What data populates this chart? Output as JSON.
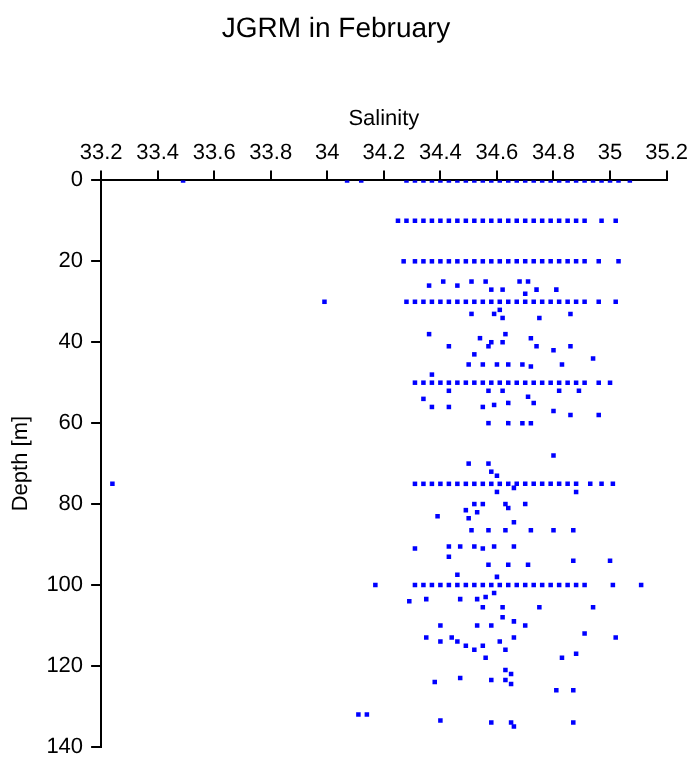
{
  "chart_data": {
    "type": "scatter",
    "title": "JGRM in February",
    "xlabel": "Salinity",
    "ylabel": "Depth [m]",
    "xlim": [
      33.2,
      35.2
    ],
    "xticks": [
      33.2,
      33.4,
      33.6,
      33.8,
      34,
      34.2,
      34.4,
      34.6,
      34.8,
      35,
      35.2
    ],
    "ylim": [
      140,
      0
    ],
    "yticks": [
      0,
      20,
      40,
      60,
      80,
      100,
      120,
      140
    ],
    "grid": false,
    "legend": false,
    "marker": "square",
    "series": [
      {
        "color": "#0000ff",
        "x": [
          33.49,
          34.07,
          34.12,
          34.28,
          34.31,
          34.34,
          34.37,
          34.4,
          34.43,
          34.46,
          34.49,
          34.52,
          34.55,
          34.58,
          34.61,
          34.64,
          34.67,
          34.7,
          34.73,
          34.76,
          34.79,
          34.82,
          34.85,
          34.88,
          34.91,
          34.94,
          34.97,
          35.0,
          35.03,
          35.07
        ],
        "values": [
          0,
          0,
          0,
          0,
          0,
          0,
          0,
          0,
          0,
          0,
          0,
          0,
          0,
          0,
          0,
          0,
          0,
          0,
          0,
          0,
          0,
          0,
          0,
          0,
          0,
          0,
          0,
          0,
          0,
          0
        ]
      },
      {
        "color": "#0000ff",
        "x": [
          34.25,
          34.28,
          34.31,
          34.34,
          34.37,
          34.4,
          34.43,
          34.46,
          34.49,
          34.52,
          34.55,
          34.58,
          34.61,
          34.64,
          34.67,
          34.7,
          34.73,
          34.76,
          34.79,
          34.82,
          34.85,
          34.88,
          34.91,
          34.97,
          35.02
        ],
        "values": [
          10,
          10,
          10,
          10,
          10,
          10,
          10,
          10,
          10,
          10,
          10,
          10,
          10,
          10,
          10,
          10,
          10,
          10,
          10,
          10,
          10,
          10,
          10,
          10,
          10
        ]
      },
      {
        "color": "#0000ff",
        "x": [
          34.27,
          34.31,
          34.34,
          34.37,
          34.4,
          34.43,
          34.46,
          34.49,
          34.52,
          34.55,
          34.58,
          34.61,
          34.64,
          34.67,
          34.7,
          34.73,
          34.76,
          34.79,
          34.82,
          34.85,
          34.88,
          34.91,
          34.96,
          35.03
        ],
        "values": [
          20,
          20,
          20,
          20,
          20,
          20,
          20,
          20,
          20,
          20,
          20,
          20,
          20,
          20,
          20,
          20,
          20,
          20,
          20,
          20,
          20,
          20,
          20,
          20
        ]
      },
      {
        "color": "#0000ff",
        "x": [
          33.99,
          34.28,
          34.31,
          34.34,
          34.37,
          34.4,
          34.43,
          34.46,
          34.49,
          34.52,
          34.55,
          34.58,
          34.61,
          34.64,
          34.67,
          34.7,
          34.73,
          34.76,
          34.79,
          34.82,
          34.85,
          34.88,
          34.91,
          34.96,
          35.02
        ],
        "values": [
          30,
          30,
          30,
          30,
          30,
          30,
          30,
          30,
          30,
          30,
          30,
          30,
          30,
          30,
          30,
          30,
          30,
          30,
          30,
          30,
          30,
          30,
          30,
          30,
          30
        ]
      },
      {
        "color": "#0000ff",
        "x": [
          34.31,
          34.34,
          34.37,
          34.4,
          34.43,
          34.46,
          34.49,
          34.52,
          34.55,
          34.58,
          34.61,
          34.64,
          34.67,
          34.7,
          34.73,
          34.76,
          34.79,
          34.82,
          34.85,
          34.88,
          34.91,
          34.96,
          35.0
        ],
        "values": [
          50,
          50,
          50,
          50,
          50,
          50,
          50,
          50,
          50,
          50,
          50,
          50,
          50,
          50,
          50,
          50,
          50,
          50,
          50,
          50,
          50,
          50,
          50
        ]
      },
      {
        "color": "#0000ff",
        "x": [
          33.24,
          34.31,
          34.34,
          34.37,
          34.4,
          34.43,
          34.46,
          34.49,
          34.52,
          34.55,
          34.58,
          34.61,
          34.64,
          34.67,
          34.7,
          34.73,
          34.76,
          34.79,
          34.82,
          34.85,
          34.88,
          34.93,
          34.97,
          35.01
        ],
        "values": [
          75,
          75,
          75,
          75,
          75,
          75,
          75,
          75,
          75,
          75,
          75,
          75,
          75,
          75,
          75,
          75,
          75,
          75,
          75,
          75,
          75,
          75,
          75,
          75
        ]
      },
      {
        "color": "#0000ff",
        "x": [
          34.17,
          34.31,
          34.34,
          34.37,
          34.4,
          34.43,
          34.46,
          34.49,
          34.52,
          34.55,
          34.58,
          34.61,
          34.64,
          34.67,
          34.7,
          34.73,
          34.76,
          34.79,
          34.82,
          34.85,
          34.88,
          34.91,
          35.01,
          35.11
        ],
        "values": [
          100,
          100,
          100,
          100,
          100,
          100,
          100,
          100,
          100,
          100,
          100,
          100,
          100,
          100,
          100,
          100,
          100,
          100,
          100,
          100,
          100,
          100,
          100,
          100
        ]
      },
      {
        "color": "#0000ff",
        "x": [
          34.36,
          34.41,
          34.46,
          34.51,
          34.56,
          34.58,
          34.62,
          34.68,
          34.71,
          34.74,
          34.81,
          34.7,
          34.61,
          34.62,
          34.59,
          34.51,
          34.75,
          34.86,
          34.36,
          34.43,
          34.54,
          34.58,
          34.62,
          34.63,
          34.72,
          34.74,
          34.8,
          34.86,
          34.52,
          34.57,
          34.5,
          34.55,
          34.6,
          34.64,
          34.69,
          34.72,
          34.83,
          34.94,
          34.37,
          34.43,
          34.57,
          34.62,
          34.71,
          34.82,
          34.89,
          34.34,
          34.37,
          34.43,
          34.55,
          34.59,
          34.64,
          34.73,
          34.8,
          34.86,
          34.96,
          34.57,
          34.64,
          34.69,
          34.72,
          34.8,
          34.5,
          34.57,
          34.58,
          34.6,
          34.88,
          34.6,
          34.66,
          34.52,
          34.55,
          34.63,
          34.64,
          34.7,
          34.49,
          34.53,
          34.5,
          34.39,
          34.66,
          34.51,
          34.57,
          34.63,
          34.72,
          34.8,
          34.87,
          34.31,
          34.43,
          34.47,
          34.52,
          34.55,
          34.59,
          34.66,
          34.43,
          34.57,
          34.64,
          34.71,
          34.87,
          35.0,
          34.46,
          34.6,
          34.29,
          34.35,
          34.47,
          34.53,
          34.56,
          34.59,
          34.55,
          34.62,
          34.75,
          34.94,
          34.4,
          34.53,
          34.58,
          34.62,
          34.66,
          34.7,
          34.91,
          34.35,
          34.4,
          34.44,
          34.46,
          34.49,
          34.52,
          34.55,
          34.61,
          34.63,
          34.66,
          35.02,
          34.56,
          34.83,
          34.88,
          34.38,
          34.47,
          34.58,
          34.63,
          34.63,
          34.65,
          34.65,
          34.81,
          34.87,
          34.11,
          34.14,
          34.4,
          34.58,
          34.65,
          34.66,
          34.87
        ],
        "values": [
          26,
          25,
          26,
          25,
          25,
          27,
          27,
          25,
          25,
          27,
          27,
          28,
          32,
          34,
          33,
          33,
          34,
          33,
          38,
          41,
          39,
          40,
          40,
          38,
          39,
          41,
          42,
          41,
          43,
          41,
          45.5,
          45.5,
          45.5,
          45.5,
          45.5,
          46,
          45.5,
          44,
          48,
          52,
          52,
          52,
          53.5,
          52,
          52,
          54,
          56,
          56,
          56,
          55.5,
          55,
          55,
          57,
          58,
          58,
          60,
          60,
          60,
          60,
          68,
          70,
          70,
          72,
          73,
          77,
          77,
          76,
          80,
          80,
          80,
          81,
          80,
          81.5,
          82,
          83.5,
          83,
          84.5,
          86.5,
          86.5,
          86.5,
          86.5,
          86.5,
          86.5,
          91,
          90.5,
          90.5,
          90.5,
          91,
          90.5,
          90.5,
          93,
          95,
          95,
          95,
          94,
          94,
          97.5,
          98,
          104,
          103.5,
          103.5,
          103.5,
          103,
          102,
          105.5,
          105.5,
          105.5,
          105.5,
          110,
          110,
          110,
          108,
          109,
          110,
          112,
          113,
          114,
          113,
          114,
          115,
          116,
          115,
          114,
          116,
          113,
          113,
          118,
          118,
          117,
          124,
          123,
          123.5,
          123.5,
          121,
          122,
          124.5,
          126,
          126,
          132,
          132,
          133.5,
          134,
          134,
          135,
          134
        ]
      }
    ]
  }
}
